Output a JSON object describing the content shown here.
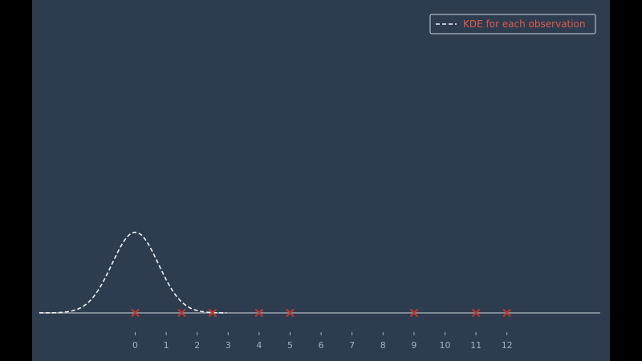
{
  "chart_data": {
    "type": "line",
    "title": "",
    "xlabel": "",
    "ylabel": "",
    "xlim": [
      -3.0,
      15.0
    ],
    "ylim": [
      0,
      1.0
    ],
    "xticks": [
      0,
      1,
      2,
      3,
      4,
      5,
      6,
      7,
      8,
      9,
      10,
      11,
      12
    ],
    "grid": false,
    "legend": {
      "position": "top-right",
      "entries": [
        "KDE for each observation"
      ]
    },
    "observations": [
      0,
      1.5,
      2.5,
      4,
      5,
      9,
      11,
      12
    ],
    "series": [
      {
        "name": "KDE for each observation",
        "style": "dashed",
        "kernel": "gaussian",
        "center": 0,
        "bandwidth": 0.75,
        "peak": 0.75,
        "x": [
          -3.0,
          -2.5,
          -2.0,
          -1.5,
          -1.0,
          -0.5,
          0.0,
          0.5,
          1.0,
          1.5,
          2.0,
          2.5,
          3.0
        ],
        "y": [
          0.0003,
          0.0083,
          0.0212,
          0.1017,
          0.3063,
          0.6007,
          0.75,
          0.6007,
          0.3063,
          0.1017,
          0.0212,
          0.0083,
          0.0003
        ]
      }
    ],
    "colors": {
      "background": "#2e3c50",
      "kde_line": "#f2f2f2",
      "observation_marker": "#c0392b",
      "legend_text": "#e05a47",
      "baseline": "#9aa3ad",
      "tick_label": "#a8b0ba"
    }
  }
}
